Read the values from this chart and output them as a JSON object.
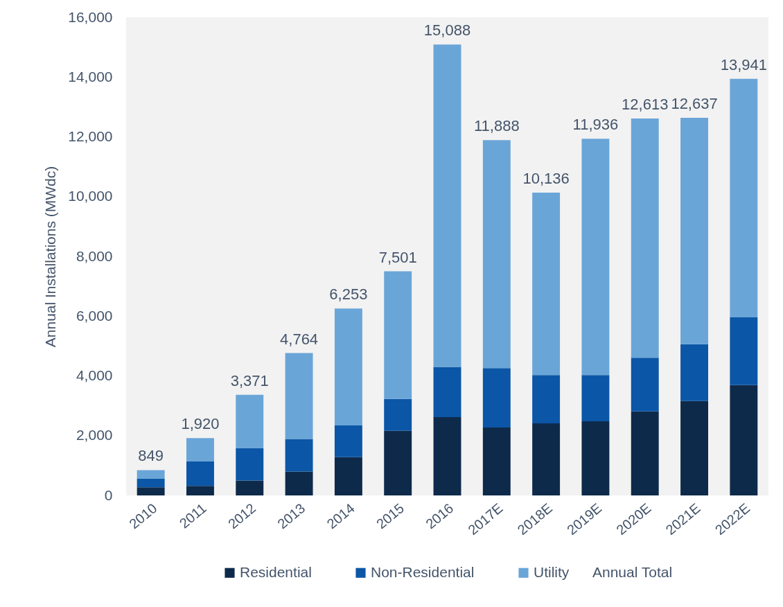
{
  "chart_data": {
    "type": "bar",
    "stacked": true,
    "ylabel": "Annual Installations (MWdc)",
    "categories": [
      "2010",
      "2011",
      "2012",
      "2013",
      "2014",
      "2015",
      "2016",
      "2017E",
      "2018E",
      "2019E",
      "2020E",
      "2021E",
      "2022E"
    ],
    "series": [
      {
        "name": "Residential",
        "color": "#0e2a4b",
        "values": [
          270,
          320,
          500,
          800,
          1280,
          2160,
          2620,
          2270,
          2410,
          2480,
          2810,
          3160,
          3690
        ]
      },
      {
        "name": "Non-Residential",
        "color": "#0b56a6",
        "values": [
          300,
          830,
          1090,
          1090,
          1060,
          1070,
          1680,
          1990,
          1620,
          1550,
          1800,
          1900,
          2270
        ]
      },
      {
        "name": "Utility",
        "color": "#6aa5d8",
        "values": [
          279,
          770,
          1781,
          2874,
          3913,
          4271,
          10788,
          7628,
          6106,
          7906,
          8003,
          7577,
          7981
        ]
      }
    ],
    "totals": [
      "849",
      "1,920",
      "3,371",
      "4,764",
      "6,253",
      "7,501",
      "15,088",
      "11,888",
      "10,136",
      "11,936",
      "12,613",
      "12,637",
      "13,941"
    ],
    "annotations": [
      "Annual Total"
    ],
    "ylim": [
      0,
      16000
    ],
    "yticks": [
      0,
      {
        "value": 2000,
        "label": "2,000"
      },
      {
        "value": 4000,
        "label": "4,000"
      },
      {
        "value": 6000,
        "label": "6,000"
      },
      {
        "value": 8000,
        "label": "8,000"
      },
      {
        "value": 10000,
        "label": "10,000"
      },
      {
        "value": 12000,
        "label": "12,000"
      },
      {
        "value": 14000,
        "label": "14,000"
      },
      {
        "value": 16000,
        "label": "16,000"
      }
    ],
    "grid": false,
    "legend": "bottom"
  }
}
